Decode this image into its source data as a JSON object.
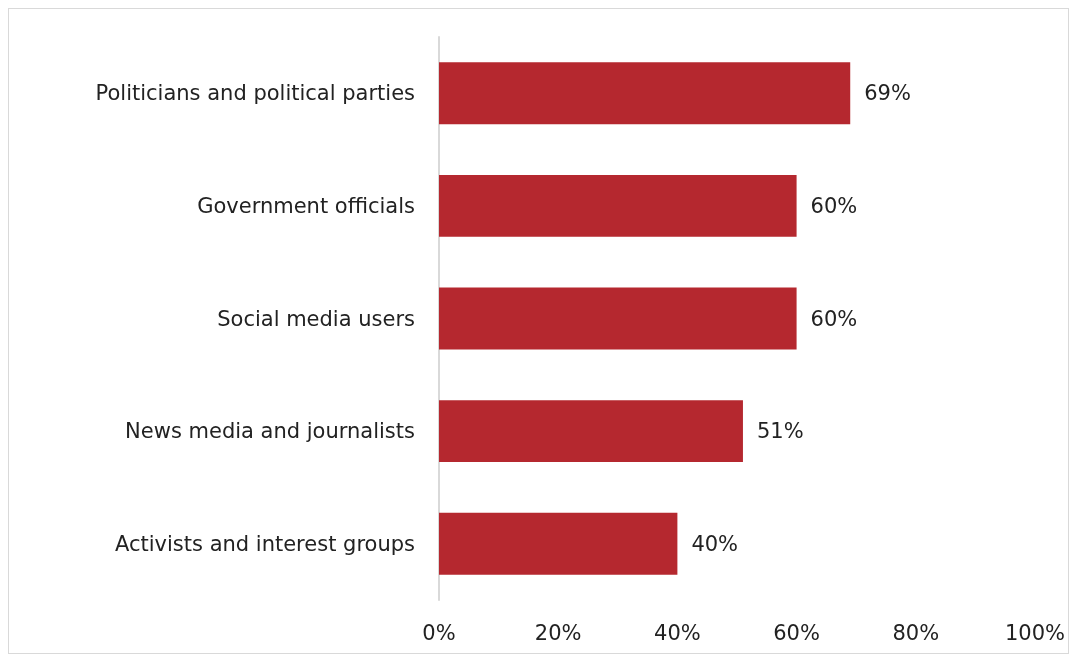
{
  "chart_data": {
    "type": "bar",
    "orientation": "horizontal",
    "categories": [
      "Politicians and political parties",
      "Government officials",
      "Social media users",
      "News media and journalists",
      "Activists and interest groups"
    ],
    "values": [
      69,
      60,
      60,
      51,
      40
    ],
    "value_labels": [
      "69%",
      "60%",
      "60%",
      "51%",
      "40%"
    ],
    "color": "#b5282f",
    "xlim": [
      0,
      100
    ],
    "xticks": [
      {
        "value": 0,
        "label": "0%"
      },
      {
        "value": 20,
        "label": "20%"
      },
      {
        "value": 40,
        "label": "40%"
      },
      {
        "value": 60,
        "label": "60%"
      },
      {
        "value": 80,
        "label": "80%"
      },
      {
        "value": 100,
        "label": "100%"
      }
    ],
    "grid": false
  }
}
